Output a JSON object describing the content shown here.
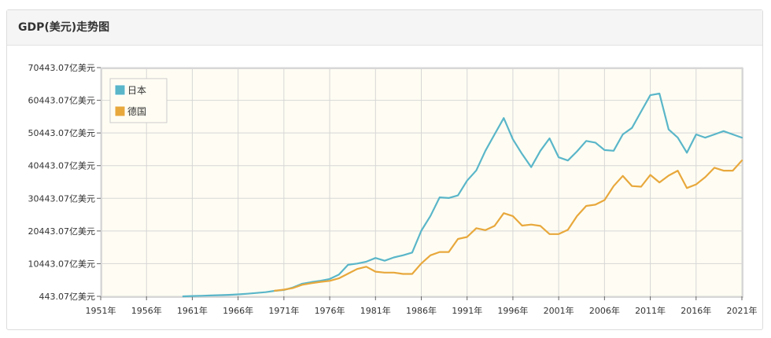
{
  "panel": {
    "title": "GDP(美元)走势图"
  },
  "chart_data": {
    "type": "line",
    "title": "",
    "xlabel": "",
    "ylabel": "",
    "ylim": [
      443.07,
      70443.07
    ],
    "xlim": [
      1951,
      2021
    ],
    "x_ticks": [
      1951,
      1956,
      1961,
      1966,
      1971,
      1976,
      1981,
      1986,
      1991,
      1996,
      2001,
      2006,
      2011,
      2016,
      2021
    ],
    "x_tick_labels": [
      "1951年",
      "1956年",
      "1961年",
      "1966年",
      "1971年",
      "1976年",
      "1981年",
      "1986年",
      "1991年",
      "1996年",
      "2001年",
      "2006年",
      "2011年",
      "2016年",
      "2021年"
    ],
    "y_ticks": [
      443.07,
      10443.07,
      20443.07,
      30443.07,
      40443.07,
      50443.07,
      60443.07,
      70443.07
    ],
    "y_tick_labels": [
      "443.07亿美元",
      "10443.07亿美元",
      "20443.07亿美元",
      "30443.07亿美元",
      "40443.07亿美元",
      "50443.07亿美元",
      "60443.07亿美元",
      "70443.07亿美元"
    ],
    "grid": true,
    "legend": {
      "position": "top-left"
    },
    "x": [
      1960,
      1961,
      1962,
      1963,
      1964,
      1965,
      1966,
      1967,
      1968,
      1969,
      1970,
      1971,
      1972,
      1973,
      1974,
      1975,
      1976,
      1977,
      1978,
      1979,
      1980,
      1981,
      1982,
      1983,
      1984,
      1985,
      1986,
      1987,
      1988,
      1989,
      1990,
      1991,
      1992,
      1993,
      1994,
      1995,
      1996,
      1997,
      1998,
      1999,
      2000,
      2001,
      2002,
      2003,
      2004,
      2005,
      2006,
      2007,
      2008,
      2009,
      2010,
      2011,
      2012,
      2013,
      2014,
      2015,
      2016,
      2017,
      2018,
      2019,
      2020,
      2021
    ],
    "series": [
      {
        "name": "日本",
        "color": "#5ab6c9",
        "values": [
          443,
          535,
          610,
          698,
          815,
          910,
          1046,
          1229,
          1467,
          1722,
          2127,
          2402,
          3165,
          4317,
          4799,
          5196,
          5763,
          7092,
          10099,
          10475,
          11050,
          12183,
          11341,
          12358,
          13005,
          13852,
          20517,
          25035,
          30733,
          30534,
          31327,
          35848,
          38972,
          44990,
          50000,
          55000,
          48500,
          44000,
          40000,
          45000,
          48800,
          43000,
          42000,
          44800,
          48000,
          47500,
          45200,
          45000,
          50000,
          52000,
          57000,
          62000,
          62500,
          51500,
          49000,
          44400,
          50000,
          49000,
          50000,
          51000,
          50000,
          49000
        ]
      },
      {
        "name": "德国",
        "color": "#e8a83c",
        "values": [
          null,
          null,
          null,
          null,
          null,
          null,
          null,
          null,
          null,
          null,
          2150,
          2490,
          2990,
          3990,
          4450,
          4880,
          5190,
          5960,
          7400,
          8820,
          9500,
          8000,
          7700,
          7700,
          7300,
          7300,
          10500,
          13000,
          14000,
          14000,
          18000,
          18600,
          21300,
          20700,
          22000,
          25900,
          25000,
          22100,
          22400,
          22000,
          19500,
          19500,
          20800,
          25000,
          28100,
          28500,
          29900,
          34200,
          37300,
          34200,
          34000,
          37600,
          35300,
          37400,
          38900,
          33600,
          34700,
          36900,
          39800,
          38900,
          38900,
          42000
        ]
      }
    ]
  }
}
